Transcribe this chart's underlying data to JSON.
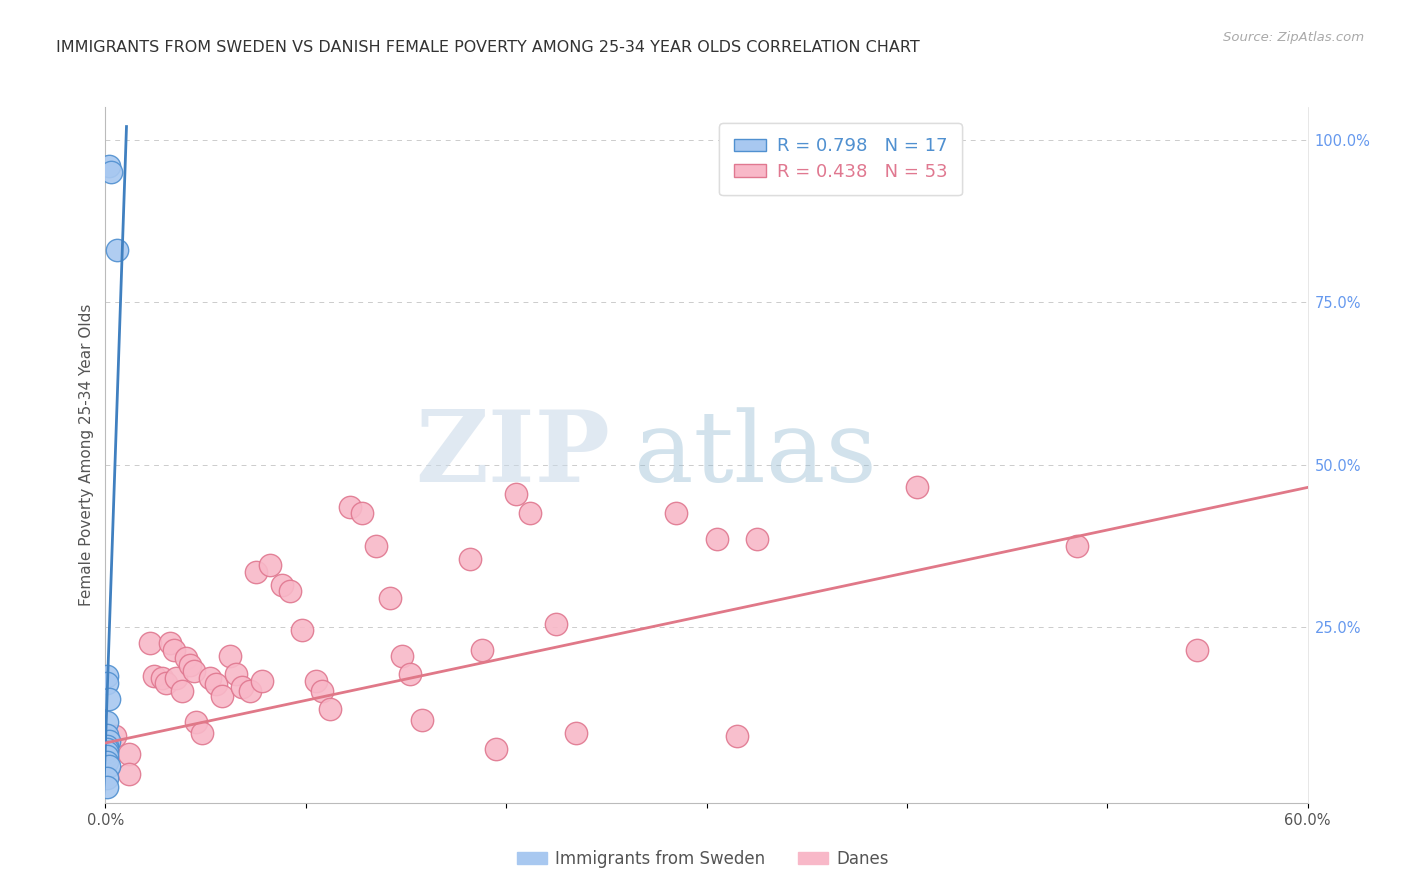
{
  "title": "IMMIGRANTS FROM SWEDEN VS DANISH FEMALE POVERTY AMONG 25-34 YEAR OLDS CORRELATION CHART",
  "source": "Source: ZipAtlas.com",
  "ylabel": "Female Poverty Among 25-34 Year Olds",
  "xlim": [
    0.0,
    0.6
  ],
  "ylim": [
    -0.02,
    1.05
  ],
  "x_tick_positions": [
    0.0,
    0.1,
    0.2,
    0.3,
    0.4,
    0.5,
    0.6
  ],
  "x_tick_labels": [
    "0.0%",
    "",
    "",
    "",
    "",
    "",
    "60.0%"
  ],
  "y_tick_positions": [
    0.0,
    0.25,
    0.5,
    0.75,
    1.0
  ],
  "y_tick_labels": [
    "",
    "25.0%",
    "50.0%",
    "75.0%",
    "100.0%"
  ],
  "blue_fill_color": "#a8c8f0",
  "blue_edge_color": "#5090d0",
  "pink_fill_color": "#f8b8c8",
  "pink_edge_color": "#e07890",
  "blue_line_color": "#4080c0",
  "pink_line_color": "#e07888",
  "legend_R_blue": "R = 0.798",
  "legend_N_blue": "N = 17",
  "legend_R_pink": "R = 0.438",
  "legend_N_pink": "N = 53",
  "blue_scatter_x": [
    0.002,
    0.003,
    0.006,
    0.001,
    0.001,
    0.002,
    0.001,
    0.001,
    0.002,
    0.001,
    0.001,
    0.001,
    0.001,
    0.001,
    0.002,
    0.001,
    0.001
  ],
  "blue_scatter_y": [
    0.96,
    0.95,
    0.83,
    0.175,
    0.165,
    0.14,
    0.105,
    0.085,
    0.075,
    0.068,
    0.062,
    0.058,
    0.052,
    0.042,
    0.036,
    0.018,
    0.004
  ],
  "pink_scatter_x": [
    0.005,
    0.012,
    0.012,
    0.022,
    0.024,
    0.028,
    0.03,
    0.032,
    0.034,
    0.035,
    0.038,
    0.04,
    0.042,
    0.044,
    0.045,
    0.048,
    0.052,
    0.055,
    0.058,
    0.062,
    0.065,
    0.068,
    0.072,
    0.075,
    0.078,
    0.082,
    0.088,
    0.092,
    0.098,
    0.105,
    0.108,
    0.112,
    0.122,
    0.128,
    0.135,
    0.142,
    0.148,
    0.152,
    0.158,
    0.182,
    0.188,
    0.195,
    0.205,
    0.212,
    0.225,
    0.235,
    0.285,
    0.305,
    0.315,
    0.325,
    0.405,
    0.485,
    0.545
  ],
  "pink_scatter_y": [
    0.082,
    0.055,
    0.025,
    0.225,
    0.175,
    0.172,
    0.165,
    0.225,
    0.215,
    0.172,
    0.152,
    0.202,
    0.192,
    0.182,
    0.105,
    0.088,
    0.172,
    0.162,
    0.145,
    0.205,
    0.178,
    0.158,
    0.152,
    0.335,
    0.168,
    0.345,
    0.315,
    0.305,
    0.245,
    0.168,
    0.152,
    0.125,
    0.435,
    0.425,
    0.375,
    0.295,
    0.205,
    0.178,
    0.108,
    0.355,
    0.215,
    0.062,
    0.455,
    0.425,
    0.255,
    0.088,
    0.425,
    0.385,
    0.082,
    0.385,
    0.465,
    0.375,
    0.215
  ],
  "blue_trendline_x": [
    -0.001,
    0.0105
  ],
  "blue_trendline_y": [
    -0.02,
    1.02
  ],
  "pink_trendline_x": [
    0.0,
    0.6
  ],
  "pink_trendline_y": [
    0.072,
    0.465
  ],
  "title_fontsize": 11.5,
  "axis_label_fontsize": 11,
  "tick_fontsize": 10.5,
  "legend_fontsize": 13,
  "background_color": "#ffffff",
  "grid_color": "#cccccc"
}
